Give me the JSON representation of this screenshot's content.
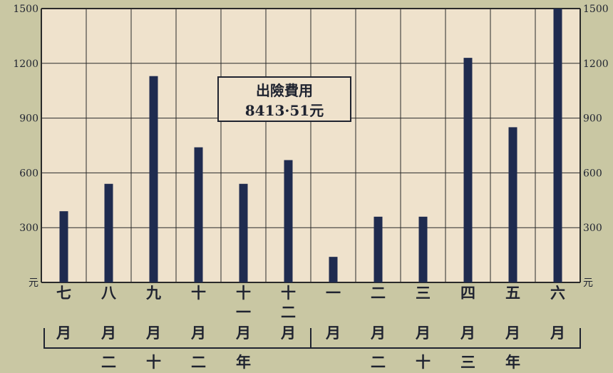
{
  "chart_data": {
    "type": "bar",
    "categories": [
      "七月",
      "八月",
      "九月",
      "十月",
      "十一月",
      "十二月",
      "一月",
      "二月",
      "三月",
      "四月",
      "五月",
      "六月"
    ],
    "category_glyphs": [
      [
        "七",
        "月"
      ],
      [
        "八",
        "月"
      ],
      [
        "九",
        "月"
      ],
      [
        "十",
        "月"
      ],
      [
        "十",
        "一",
        "月"
      ],
      [
        "十",
        "二",
        "月"
      ],
      [
        "一",
        "月"
      ],
      [
        "二",
        "月"
      ],
      [
        "三",
        "月"
      ],
      [
        "四",
        "月"
      ],
      [
        "五",
        "月"
      ],
      [
        "六",
        "月"
      ]
    ],
    "values": [
      390,
      540,
      1130,
      740,
      540,
      670,
      140,
      360,
      360,
      1230,
      850,
      1500
    ],
    "ylim": [
      0,
      1500
    ],
    "yticks": [
      300,
      600,
      900,
      1200,
      1500
    ],
    "y_unit": "元",
    "grid": true,
    "year_groups": [
      {
        "label": "二十二年",
        "glyphs": [
          "二",
          "十",
          "二",
          "年"
        ],
        "categories": [
          "七月",
          "八月",
          "九月",
          "十月",
          "十一月",
          "十二月"
        ]
      },
      {
        "label": "二十三年",
        "glyphs": [
          "二",
          "十",
          "三",
          "年"
        ],
        "categories": [
          "一月",
          "二月",
          "三月",
          "四月",
          "五月",
          "六月"
        ]
      }
    ],
    "annotation": {
      "line1": "出險費用",
      "line2": "8413·51元"
    },
    "bar_color": "#1f2b4f",
    "plot_background": "#efe2cc",
    "grid_color": "#2a2a2a"
  }
}
